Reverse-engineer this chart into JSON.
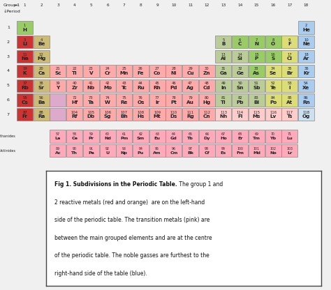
{
  "background": "#f0f0f0",
  "colors": {
    "red": "#cc3333",
    "tan": "#ccbb77",
    "pink": "#ffaaaa",
    "light_pink": "#ffcccc",
    "green": "#99cc66",
    "light_green": "#bbcc99",
    "yellow": "#dddd77",
    "blue": "#aaccee",
    "light_blue": "#cce0f0",
    "purple": "#ddaadd",
    "lant_act": "#ffaabb"
  },
  "elements": [
    {
      "symbol": "H",
      "number": 1,
      "group": 1,
      "period": 1,
      "color": "green"
    },
    {
      "symbol": "He",
      "number": 2,
      "group": 18,
      "period": 1,
      "color": "blue"
    },
    {
      "symbol": "Li",
      "number": 3,
      "group": 1,
      "period": 2,
      "color": "red"
    },
    {
      "symbol": "Be",
      "number": 4,
      "group": 2,
      "period": 2,
      "color": "tan"
    },
    {
      "symbol": "B",
      "number": 5,
      "group": 13,
      "period": 2,
      "color": "light_green"
    },
    {
      "symbol": "C",
      "number": 6,
      "group": 14,
      "period": 2,
      "color": "green"
    },
    {
      "symbol": "N",
      "number": 7,
      "group": 15,
      "period": 2,
      "color": "green"
    },
    {
      "symbol": "O",
      "number": 8,
      "group": 16,
      "period": 2,
      "color": "green"
    },
    {
      "symbol": "F",
      "number": 9,
      "group": 17,
      "period": 2,
      "color": "yellow"
    },
    {
      "symbol": "Ne",
      "number": 10,
      "group": 18,
      "period": 2,
      "color": "blue"
    },
    {
      "symbol": "Na",
      "number": 11,
      "group": 1,
      "period": 3,
      "color": "red"
    },
    {
      "symbol": "Mg",
      "number": 12,
      "group": 2,
      "period": 3,
      "color": "tan"
    },
    {
      "symbol": "Al",
      "number": 13,
      "group": 13,
      "period": 3,
      "color": "light_green"
    },
    {
      "symbol": "Si",
      "number": 14,
      "group": 14,
      "period": 3,
      "color": "light_green"
    },
    {
      "symbol": "P",
      "number": 15,
      "group": 15,
      "period": 3,
      "color": "green"
    },
    {
      "symbol": "S",
      "number": 16,
      "group": 16,
      "period": 3,
      "color": "green"
    },
    {
      "symbol": "Cl",
      "number": 17,
      "group": 17,
      "period": 3,
      "color": "yellow"
    },
    {
      "symbol": "Ar",
      "number": 18,
      "group": 18,
      "period": 3,
      "color": "blue"
    },
    {
      "symbol": "K",
      "number": 19,
      "group": 1,
      "period": 4,
      "color": "red"
    },
    {
      "symbol": "Ca",
      "number": 20,
      "group": 2,
      "period": 4,
      "color": "tan"
    },
    {
      "symbol": "Sc",
      "number": 21,
      "group": 3,
      "period": 4,
      "color": "pink"
    },
    {
      "symbol": "Ti",
      "number": 22,
      "group": 4,
      "period": 4,
      "color": "pink"
    },
    {
      "symbol": "V",
      "number": 23,
      "group": 5,
      "period": 4,
      "color": "pink"
    },
    {
      "symbol": "Cr",
      "number": 24,
      "group": 6,
      "period": 4,
      "color": "pink"
    },
    {
      "symbol": "Mn",
      "number": 25,
      "group": 7,
      "period": 4,
      "color": "pink"
    },
    {
      "symbol": "Fe",
      "number": 26,
      "group": 8,
      "period": 4,
      "color": "pink"
    },
    {
      "symbol": "Co",
      "number": 27,
      "group": 9,
      "period": 4,
      "color": "pink"
    },
    {
      "symbol": "Ni",
      "number": 28,
      "group": 10,
      "period": 4,
      "color": "pink"
    },
    {
      "symbol": "Cu",
      "number": 29,
      "group": 11,
      "period": 4,
      "color": "pink"
    },
    {
      "symbol": "Zn",
      "number": 30,
      "group": 12,
      "period": 4,
      "color": "pink"
    },
    {
      "symbol": "Ga",
      "number": 31,
      "group": 13,
      "period": 4,
      "color": "light_green"
    },
    {
      "symbol": "Ge",
      "number": 32,
      "group": 14,
      "period": 4,
      "color": "light_green"
    },
    {
      "symbol": "As",
      "number": 33,
      "group": 15,
      "period": 4,
      "color": "green"
    },
    {
      "symbol": "Se",
      "number": 34,
      "group": 16,
      "period": 4,
      "color": "yellow"
    },
    {
      "symbol": "Br",
      "number": 35,
      "group": 17,
      "period": 4,
      "color": "yellow"
    },
    {
      "symbol": "Kr",
      "number": 36,
      "group": 18,
      "period": 4,
      "color": "blue"
    },
    {
      "symbol": "Rb",
      "number": 37,
      "group": 1,
      "period": 5,
      "color": "red"
    },
    {
      "symbol": "Sr",
      "number": 38,
      "group": 2,
      "period": 5,
      "color": "tan"
    },
    {
      "symbol": "Y",
      "number": 39,
      "group": 3,
      "period": 5,
      "color": "pink"
    },
    {
      "symbol": "Zr",
      "number": 40,
      "group": 4,
      "period": 5,
      "color": "pink"
    },
    {
      "symbol": "Nb",
      "number": 41,
      "group": 5,
      "period": 5,
      "color": "pink"
    },
    {
      "symbol": "Mo",
      "number": 42,
      "group": 6,
      "period": 5,
      "color": "pink"
    },
    {
      "symbol": "Tc",
      "number": 43,
      "group": 7,
      "period": 5,
      "color": "pink"
    },
    {
      "symbol": "Ru",
      "number": 44,
      "group": 8,
      "period": 5,
      "color": "pink"
    },
    {
      "symbol": "Rh",
      "number": 45,
      "group": 9,
      "period": 5,
      "color": "pink"
    },
    {
      "symbol": "Pd",
      "number": 46,
      "group": 10,
      "period": 5,
      "color": "pink"
    },
    {
      "symbol": "Ag",
      "number": 47,
      "group": 11,
      "period": 5,
      "color": "pink"
    },
    {
      "symbol": "Cd",
      "number": 48,
      "group": 12,
      "period": 5,
      "color": "pink"
    },
    {
      "symbol": "In",
      "number": 49,
      "group": 13,
      "period": 5,
      "color": "light_green"
    },
    {
      "symbol": "Sn",
      "number": 50,
      "group": 14,
      "period": 5,
      "color": "light_green"
    },
    {
      "symbol": "Sb",
      "number": 51,
      "group": 15,
      "period": 5,
      "color": "light_green"
    },
    {
      "symbol": "Te",
      "number": 52,
      "group": 16,
      "period": 5,
      "color": "yellow"
    },
    {
      "symbol": "I",
      "number": 53,
      "group": 17,
      "period": 5,
      "color": "yellow"
    },
    {
      "symbol": "Xe",
      "number": 54,
      "group": 18,
      "period": 5,
      "color": "blue"
    },
    {
      "symbol": "Cs",
      "number": 55,
      "group": 1,
      "period": 6,
      "color": "red"
    },
    {
      "symbol": "Ba",
      "number": 56,
      "group": 2,
      "period": 6,
      "color": "tan"
    },
    {
      "symbol": "Hf",
      "number": 72,
      "group": 4,
      "period": 6,
      "color": "pink"
    },
    {
      "symbol": "Ta",
      "number": 73,
      "group": 5,
      "period": 6,
      "color": "pink"
    },
    {
      "symbol": "W",
      "number": 74,
      "group": 6,
      "period": 6,
      "color": "pink"
    },
    {
      "symbol": "Re",
      "number": 75,
      "group": 7,
      "period": 6,
      "color": "pink"
    },
    {
      "symbol": "Os",
      "number": 76,
      "group": 8,
      "period": 6,
      "color": "pink"
    },
    {
      "symbol": "Ir",
      "number": 77,
      "group": 9,
      "period": 6,
      "color": "pink"
    },
    {
      "symbol": "Pt",
      "number": 78,
      "group": 10,
      "period": 6,
      "color": "pink"
    },
    {
      "symbol": "Au",
      "number": 79,
      "group": 11,
      "period": 6,
      "color": "pink"
    },
    {
      "symbol": "Hg",
      "number": 80,
      "group": 12,
      "period": 6,
      "color": "pink"
    },
    {
      "symbol": "Tl",
      "number": 81,
      "group": 13,
      "period": 6,
      "color": "light_green"
    },
    {
      "symbol": "Pb",
      "number": 82,
      "group": 14,
      "period": 6,
      "color": "light_green"
    },
    {
      "symbol": "Bi",
      "number": 83,
      "group": 15,
      "period": 6,
      "color": "light_green"
    },
    {
      "symbol": "Po",
      "number": 84,
      "group": 16,
      "period": 6,
      "color": "yellow"
    },
    {
      "symbol": "At",
      "number": 85,
      "group": 17,
      "period": 6,
      "color": "yellow"
    },
    {
      "symbol": "Rn",
      "number": 86,
      "group": 18,
      "period": 6,
      "color": "blue"
    },
    {
      "symbol": "Fr",
      "number": 87,
      "group": 1,
      "period": 7,
      "color": "red"
    },
    {
      "symbol": "Ra",
      "number": 88,
      "group": 2,
      "period": 7,
      "color": "tan"
    },
    {
      "symbol": "Rf",
      "number": 104,
      "group": 4,
      "period": 7,
      "color": "pink"
    },
    {
      "symbol": "Db",
      "number": 105,
      "group": 5,
      "period": 7,
      "color": "pink"
    },
    {
      "symbol": "Sg",
      "number": 106,
      "group": 6,
      "period": 7,
      "color": "pink"
    },
    {
      "symbol": "Bh",
      "number": 107,
      "group": 7,
      "period": 7,
      "color": "pink"
    },
    {
      "symbol": "Hs",
      "number": 108,
      "group": 8,
      "period": 7,
      "color": "pink"
    },
    {
      "symbol": "Mt",
      "number": 109,
      "group": 9,
      "period": 7,
      "color": "pink"
    },
    {
      "symbol": "Ds",
      "number": 110,
      "group": 10,
      "period": 7,
      "color": "pink"
    },
    {
      "symbol": "Rg",
      "number": 111,
      "group": 11,
      "period": 7,
      "color": "pink"
    },
    {
      "symbol": "Cn",
      "number": 112,
      "group": 12,
      "period": 7,
      "color": "pink"
    },
    {
      "symbol": "Nh",
      "number": 113,
      "group": 13,
      "period": 7,
      "color": "light_pink"
    },
    {
      "symbol": "Fl",
      "number": 114,
      "group": 14,
      "period": 7,
      "color": "light_pink"
    },
    {
      "symbol": "Ms",
      "number": 115,
      "group": 15,
      "period": 7,
      "color": "light_pink"
    },
    {
      "symbol": "Lv",
      "number": 116,
      "group": 16,
      "period": 7,
      "color": "light_pink"
    },
    {
      "symbol": "Ts",
      "number": 117,
      "group": 17,
      "period": 7,
      "color": "light_pink"
    },
    {
      "symbol": "Og",
      "number": 118,
      "group": 18,
      "period": 7,
      "color": "light_blue"
    }
  ],
  "lanthanides": [
    {
      "symbol": "La",
      "number": 57
    },
    {
      "symbol": "Ce",
      "number": 58
    },
    {
      "symbol": "Pr",
      "number": 59
    },
    {
      "symbol": "Nd",
      "number": 60
    },
    {
      "symbol": "Pm",
      "number": 61
    },
    {
      "symbol": "Sm",
      "number": 62
    },
    {
      "symbol": "Eu",
      "number": 63
    },
    {
      "symbol": "Gd",
      "number": 64
    },
    {
      "symbol": "Tb",
      "number": 65
    },
    {
      "symbol": "Dy",
      "number": 66
    },
    {
      "symbol": "Ho",
      "number": 67
    },
    {
      "symbol": "Er",
      "number": 68
    },
    {
      "symbol": "Tm",
      "number": 69
    },
    {
      "symbol": "Yb",
      "number": 70
    },
    {
      "symbol": "Lu",
      "number": 71
    }
  ],
  "actinides": [
    {
      "symbol": "Ac",
      "number": 89
    },
    {
      "symbol": "Th",
      "number": 90
    },
    {
      "symbol": "Pa",
      "number": 91
    },
    {
      "symbol": "U",
      "number": 92
    },
    {
      "symbol": "Np",
      "number": 93
    },
    {
      "symbol": "Pu",
      "number": 94
    },
    {
      "symbol": "Am",
      "number": 95
    },
    {
      "symbol": "Cm",
      "number": 96
    },
    {
      "symbol": "Bk",
      "number": 97
    },
    {
      "symbol": "Cf",
      "number": 98
    },
    {
      "symbol": "Es",
      "number": 99
    },
    {
      "symbol": "Fm",
      "number": 100
    },
    {
      "symbol": "Md",
      "number": 101
    },
    {
      "symbol": "No",
      "number": 102
    },
    {
      "symbol": "Lr",
      "number": 103
    }
  ]
}
